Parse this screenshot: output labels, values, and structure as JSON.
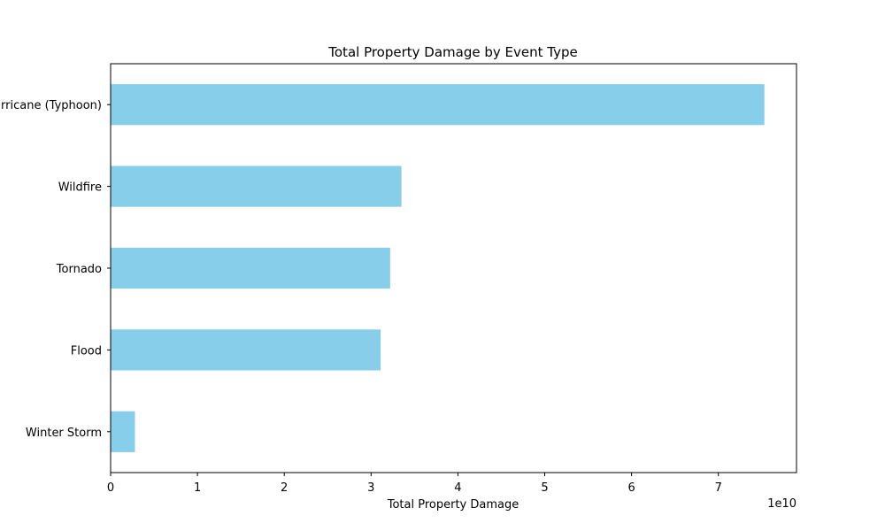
{
  "chart_data": {
    "type": "bar",
    "orientation": "horizontal",
    "title": "Total Property Damage by Event Type",
    "xlabel": "Total Property Damage",
    "ylabel": "",
    "x_offset_label": "1e10",
    "categories": [
      "Hurricane (Typhoon)",
      "Wildfire",
      "Tornado",
      "Flood",
      "Winter Storm"
    ],
    "values": [
      75300000000,
      33500000000,
      32200000000,
      31100000000,
      2800000000
    ],
    "xlim": [
      0,
      79000000000
    ],
    "x_ticks": [
      0,
      10000000000,
      20000000000,
      30000000000,
      40000000000,
      50000000000,
      60000000000,
      70000000000
    ],
    "x_tick_labels": [
      "0",
      "1",
      "2",
      "3",
      "4",
      "5",
      "6",
      "7"
    ],
    "bar_color": "#87ceeb",
    "grid": false,
    "legend": "none"
  }
}
